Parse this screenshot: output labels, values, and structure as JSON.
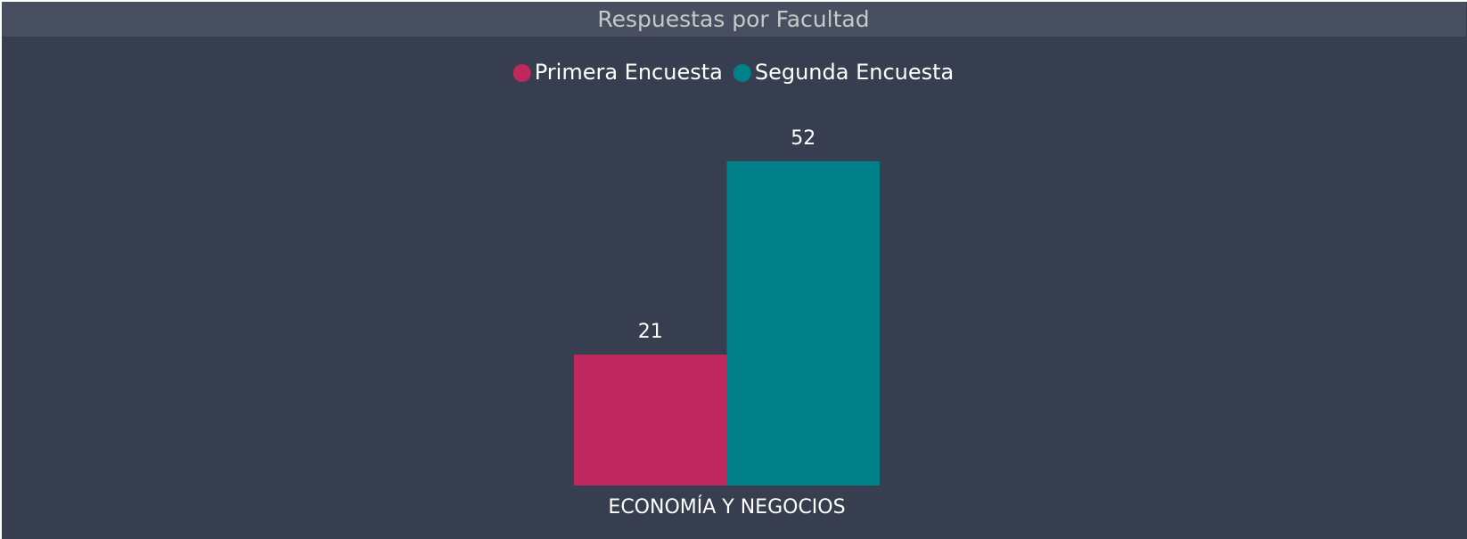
{
  "chart_data": {
    "type": "bar",
    "title": "Respuestas por Facultad",
    "categories": [
      "ECONOMÍA Y NEGOCIOS"
    ],
    "series": [
      {
        "name": "Primera Encuesta",
        "color": "#c0275c",
        "values": [
          21
        ]
      },
      {
        "name": "Segunda Encuesta",
        "color": "#00818a",
        "values": [
          52
        ]
      }
    ],
    "legend": "top"
  }
}
